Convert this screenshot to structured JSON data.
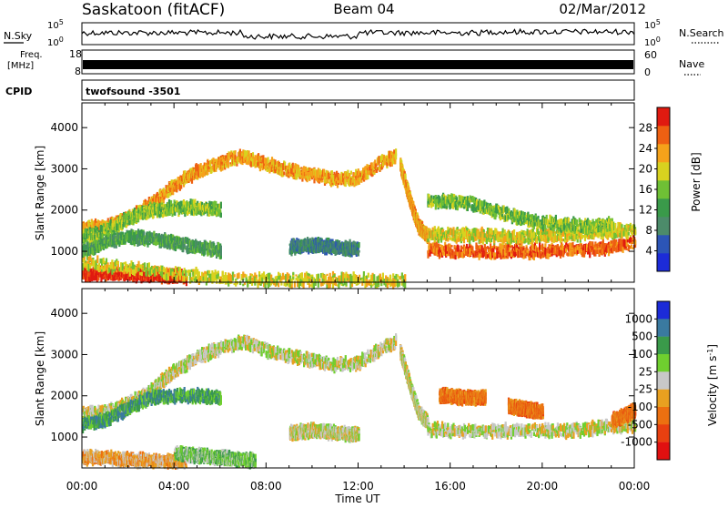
{
  "header": {
    "site": "Saskatoon (fitACF)",
    "beam": "Beam 04",
    "date": "02/Mar/2012"
  },
  "noise_panel": {
    "left_label": "N.Sky",
    "right_label": "N.Search",
    "ticks": [
      "10^5",
      "10^0"
    ]
  },
  "freq_panel": {
    "left_label_1": "Freq.",
    "left_label_2": "[MHz]",
    "left_ticks": [
      "18",
      "8"
    ],
    "right_label": "Nave",
    "right_ticks": [
      "60",
      "0"
    ]
  },
  "cpid": {
    "label": "CPID",
    "value": "twofsound -3501"
  },
  "colors": {
    "power": [
      "#1c2bd8",
      "#2c55b6",
      "#4c8b6a",
      "#3a9a4a",
      "#6fc035",
      "#d8d21f",
      "#f5a21a",
      "#ee6012",
      "#e01a10"
    ],
    "velocity": [
      "#1c2bd8",
      "#3a7aa0",
      "#3a9a4a",
      "#6fcf2f",
      "#c8c8c8",
      "#e8a020",
      "#ec7010",
      "#e84010",
      "#e01010"
    ]
  },
  "chart_data": [
    {
      "type": "heatmap",
      "name": "power",
      "ylabel": "Slant Range [km]",
      "x_ticks": [
        "00:00",
        "04:00",
        "08:00",
        "12:00",
        "16:00",
        "20:00",
        "00:00"
      ],
      "y_ticks": [
        "1000",
        "2000",
        "3000",
        "4000"
      ],
      "ylim": [
        250,
        4600
      ],
      "colorbar": {
        "label": "Power [dB]",
        "ticks": [
          "4",
          "8",
          "12",
          "16",
          "20",
          "24",
          "28"
        ],
        "range": [
          0,
          32
        ]
      },
      "echo_bands": [
        {
          "x": [
            0.0,
            1.0,
            2.0,
            3.0,
            4.0,
            5.0,
            6.0
          ],
          "y": [
            1550,
            1600,
            1800,
            2150,
            2600,
            2950,
            3150
          ],
          "level": 6
        },
        {
          "x": [
            6.0,
            7.0,
            8.0,
            9.0,
            10.0,
            11.0,
            12.0,
            13.0,
            13.6
          ],
          "y": [
            3150,
            3300,
            3100,
            2950,
            2850,
            2750,
            2800,
            3150,
            3300
          ],
          "level": 6
        },
        {
          "x": [
            13.8,
            14.0,
            14.3,
            14.6,
            15.0
          ],
          "y": [
            3100,
            2700,
            2100,
            1600,
            1350
          ],
          "level": 6
        },
        {
          "x": [
            15.0,
            16.0,
            17.0,
            18.0,
            19.0,
            20.0,
            21.0,
            22.0,
            23.0,
            24.0
          ],
          "y": [
            1050,
            1000,
            1000,
            1000,
            1000,
            1000,
            1050,
            1050,
            1100,
            1200
          ],
          "level": 7
        },
        {
          "x": [
            15.0,
            16.0,
            17.0,
            18.0,
            19.0,
            20.0,
            21.0,
            22.0,
            23.0,
            24.0
          ],
          "y": [
            1400,
            1400,
            1400,
            1350,
            1350,
            1400,
            1400,
            1450,
            1500,
            1500
          ],
          "level": 5
        },
        {
          "x": [
            15.0,
            16.0,
            17.0,
            18.0,
            19.0,
            20.0,
            21.0,
            22.0,
            23.0
          ],
          "y": [
            2200,
            2200,
            2150,
            1950,
            1800,
            1700,
            1650,
            1600,
            1650
          ],
          "level": 4
        },
        {
          "x": [
            0.0,
            1.0,
            2.0,
            3.0,
            4.0,
            4.5
          ],
          "y": [
            450,
            480,
            450,
            420,
            400,
            380
          ],
          "level": 8
        },
        {
          "x": [
            0.0,
            1.0,
            2.0,
            3.0,
            4.0,
            5.0,
            6.0,
            7.0,
            8.0,
            9.0,
            10.0,
            11.0,
            12.0,
            13.0,
            14.0
          ],
          "y": [
            750,
            650,
            600,
            550,
            450,
            400,
            350,
            300,
            300,
            300,
            300,
            300,
            300,
            300,
            300
          ],
          "level": 5
        },
        {
          "x": [
            0.0,
            0.5,
            1.0,
            2.0,
            3.0,
            4.0,
            5.0,
            6.0
          ],
          "y": [
            1050,
            1100,
            1250,
            1350,
            1300,
            1200,
            1100,
            1000
          ],
          "level": 3
        },
        {
          "x": [
            0.0,
            1.0,
            2.0,
            3.0,
            4.0,
            5.0,
            6.0
          ],
          "y": [
            1350,
            1500,
            1800,
            2000,
            2050,
            2050,
            2000
          ],
          "level": 4
        },
        {
          "x": [
            9.0,
            10.0,
            11.0,
            12.0
          ],
          "y": [
            1100,
            1150,
            1100,
            1050
          ],
          "level": 2
        }
      ]
    },
    {
      "type": "heatmap",
      "name": "velocity",
      "xlabel": "Time UT",
      "ylabel": "Slant Range [km]",
      "x_ticks": [
        "00:00",
        "04:00",
        "08:00",
        "12:00",
        "16:00",
        "20:00",
        "00:00"
      ],
      "y_ticks": [
        "1000",
        "2000",
        "3000",
        "4000"
      ],
      "ylim": [
        250,
        4600
      ],
      "colorbar": {
        "label": "Velocity [m s^-1]",
        "ticks": [
          "1000",
          "500",
          "100",
          "25",
          "-25",
          "-100",
          "-500",
          "-1000"
        ]
      },
      "echo_bands": [
        {
          "x": [
            0.0,
            1.0,
            2.0,
            3.0,
            4.0,
            5.0,
            6.0
          ],
          "y": [
            1550,
            1600,
            1800,
            2150,
            2600,
            2950,
            3150
          ],
          "level": 4
        },
        {
          "x": [
            6.0,
            7.0,
            8.0,
            9.0,
            10.0,
            11.0,
            12.0,
            13.0,
            13.6
          ],
          "y": [
            3150,
            3300,
            3100,
            2950,
            2850,
            2750,
            2800,
            3150,
            3300
          ],
          "level": 4
        },
        {
          "x": [
            13.8,
            14.0,
            14.3,
            14.6,
            15.0
          ],
          "y": [
            3100,
            2700,
            2100,
            1600,
            1350
          ],
          "level": 4
        },
        {
          "x": [
            15.0,
            16.0,
            17.0,
            18.0,
            19.0,
            20.0,
            21.0,
            22.0,
            23.0,
            24.0
          ],
          "y": [
            1200,
            1150,
            1150,
            1150,
            1150,
            1150,
            1150,
            1200,
            1250,
            1300
          ],
          "level": 4
        },
        {
          "x": [
            15.5,
            16.0,
            16.5,
            17.0,
            17.5
          ],
          "y": [
            2000,
            2000,
            1950,
            1950,
            1950
          ],
          "level": 6
        },
        {
          "x": [
            18.5,
            19.0,
            19.5,
            20.0
          ],
          "y": [
            1750,
            1700,
            1650,
            1600
          ],
          "level": 6
        },
        {
          "x": [
            0.0,
            1.0,
            2.0,
            3.0,
            4.0,
            4.5
          ],
          "y": [
            500,
            500,
            450,
            430,
            420,
            400
          ],
          "level": 5
        },
        {
          "x": [
            4.0,
            5.0,
            6.0,
            7.0,
            7.5
          ],
          "y": [
            600,
            550,
            500,
            450,
            420
          ],
          "level": 3
        },
        {
          "x": [
            0.0,
            1.0,
            2.0,
            3.0,
            4.0,
            5.0,
            6.0
          ],
          "y": [
            1300,
            1400,
            1700,
            1950,
            2000,
            2000,
            1950
          ],
          "level": 2
        },
        {
          "x": [
            9.0,
            10.0,
            11.0,
            12.0
          ],
          "y": [
            1100,
            1150,
            1100,
            1050
          ],
          "level": 4
        },
        {
          "x": [
            23.0,
            23.5,
            24.0
          ],
          "y": [
            1400,
            1500,
            1650
          ],
          "level": 6
        }
      ]
    }
  ]
}
